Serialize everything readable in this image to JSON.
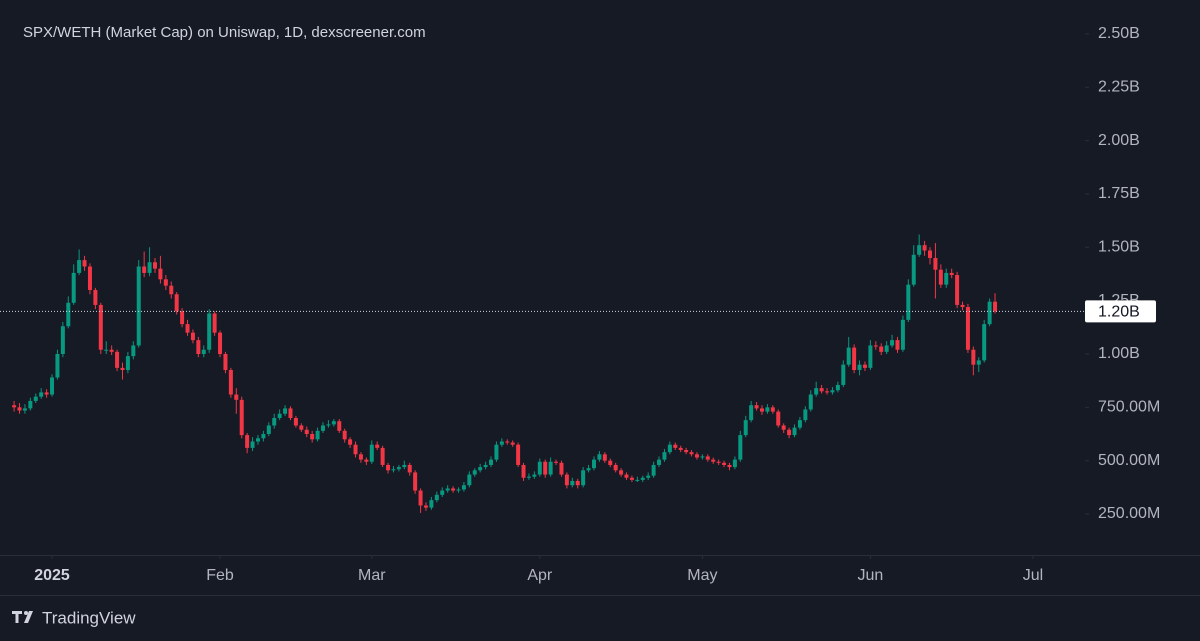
{
  "chart_data": {
    "type": "candlestick",
    "title": "SPX/WETH (Market Cap) on Uniswap, 1D, dexscreener.com",
    "brand": "TradingView",
    "up_color": "#089981",
    "down_color": "#f23645",
    "ylim": [
      58,
      2659
    ],
    "yticks": [
      {
        "value": 2500,
        "label": "2.50B"
      },
      {
        "value": 2250,
        "label": "2.25B"
      },
      {
        "value": 2000,
        "label": "2.00B"
      },
      {
        "value": 1750,
        "label": "1.75B"
      },
      {
        "value": 1500,
        "label": "1.50B"
      },
      {
        "value": 1250,
        "label": "1.25B"
      },
      {
        "value": 1000,
        "label": "1.00B"
      },
      {
        "value": 750,
        "label": "750.00M"
      },
      {
        "value": 500,
        "label": "500.00M"
      },
      {
        "value": 250,
        "label": "250.00M"
      }
    ],
    "xlim": [
      -2.6,
      197.6
    ],
    "xticks": [
      {
        "value": 7,
        "label": "2025"
      },
      {
        "value": 38,
        "label": "Feb"
      },
      {
        "value": 66,
        "label": "Mar"
      },
      {
        "value": 97,
        "label": "Apr"
      },
      {
        "value": 127,
        "label": "May"
      },
      {
        "value": 158,
        "label": "Jun"
      },
      {
        "value": 188,
        "label": "Jul"
      }
    ],
    "price_line": {
      "value": 1200,
      "label": "1.20B"
    },
    "open": [
      760,
      750,
      735,
      745,
      780,
      800,
      820,
      810,
      890,
      1000,
      1130,
      1240,
      1380,
      1440,
      1410,
      1300,
      1230,
      1020,
      1020,
      1010,
      935,
      925,
      990,
      1040,
      1410,
      1380,
      1430,
      1400,
      1350,
      1320,
      1280,
      1200,
      1140,
      1100,
      1065,
      1000,
      1020,
      1190,
      1100,
      1000,
      925,
      810,
      785,
      620,
      560,
      590,
      605,
      625,
      665,
      700,
      720,
      745,
      700,
      665,
      645,
      625,
      600,
      640,
      665,
      670,
      685,
      640,
      600,
      575,
      530,
      505,
      495,
      575,
      560,
      480,
      455,
      460,
      470,
      480,
      445,
      360,
      290,
      280,
      315,
      340,
      360,
      370,
      360,
      365,
      385,
      435,
      455,
      470,
      480,
      505,
      575,
      590,
      585,
      575,
      480,
      420,
      425,
      435,
      495,
      435,
      495,
      490,
      435,
      385,
      405,
      385,
      455,
      465,
      505,
      530,
      500,
      480,
      455,
      435,
      420,
      410,
      410,
      420,
      430,
      480,
      505,
      540,
      575,
      560,
      550,
      540,
      530,
      515,
      520,
      505,
      495,
      490,
      480,
      470,
      505,
      620,
      690,
      760,
      745,
      730,
      750,
      730,
      665,
      645,
      620,
      655,
      690,
      740,
      810,
      840,
      825,
      820,
      830,
      855,
      950,
      1030,
      925,
      950,
      935,
      1040,
      1035,
      1010,
      1040,
      1065,
      1020,
      1160,
      1325,
      1465,
      1510,
      1485,
      1450,
      1395,
      1325,
      1380,
      1370,
      1230,
      1220,
      1020,
      950,
      970,
      1140,
      1245
    ],
    "high": [
      780,
      770,
      765,
      795,
      815,
      840,
      835,
      905,
      1020,
      1150,
      1270,
      1420,
      1490,
      1460,
      1425,
      1310,
      1240,
      1060,
      1040,
      1020,
      960,
      1010,
      1060,
      1440,
      1480,
      1500,
      1450,
      1460,
      1370,
      1340,
      1290,
      1215,
      1160,
      1115,
      1080,
      1040,
      1210,
      1200,
      1110,
      1010,
      935,
      840,
      800,
      630,
      610,
      620,
      640,
      680,
      720,
      740,
      760,
      755,
      710,
      675,
      660,
      640,
      655,
      680,
      690,
      695,
      695,
      650,
      610,
      590,
      540,
      515,
      595,
      590,
      570,
      490,
      475,
      480,
      500,
      490,
      455,
      370,
      305,
      330,
      355,
      375,
      385,
      380,
      375,
      400,
      450,
      465,
      485,
      495,
      520,
      590,
      605,
      600,
      595,
      585,
      490,
      440,
      450,
      510,
      505,
      515,
      505,
      500,
      445,
      420,
      415,
      470,
      480,
      520,
      545,
      540,
      510,
      490,
      465,
      445,
      430,
      425,
      430,
      445,
      495,
      520,
      555,
      590,
      585,
      570,
      560,
      550,
      540,
      530,
      530,
      515,
      505,
      500,
      490,
      520,
      640,
      710,
      780,
      775,
      760,
      765,
      760,
      740,
      675,
      655,
      670,
      705,
      755,
      830,
      870,
      855,
      840,
      845,
      870,
      970,
      1080,
      1045,
      970,
      965,
      1065,
      1060,
      1050,
      1060,
      1090,
      1080,
      1180,
      1350,
      1510,
      1560,
      1530,
      1500,
      1520,
      1420,
      1400,
      1400,
      1385,
      1245,
      1235,
      1035,
      985,
      1160,
      1260,
      1285
    ],
    "low": [
      730,
      720,
      720,
      735,
      770,
      790,
      795,
      800,
      880,
      985,
      1120,
      1230,
      1370,
      1390,
      1280,
      1210,
      1000,
      1000,
      995,
      920,
      880,
      910,
      975,
      1030,
      1360,
      1365,
      1380,
      1330,
      1300,
      1260,
      1185,
      1125,
      1085,
      1050,
      985,
      985,
      1005,
      1085,
      985,
      910,
      795,
      720,
      605,
      535,
      545,
      575,
      590,
      615,
      650,
      690,
      710,
      690,
      655,
      635,
      610,
      585,
      590,
      630,
      655,
      660,
      630,
      585,
      560,
      515,
      490,
      480,
      485,
      550,
      470,
      440,
      445,
      450,
      460,
      430,
      345,
      255,
      265,
      270,
      305,
      330,
      350,
      350,
      350,
      355,
      375,
      425,
      445,
      460,
      470,
      495,
      565,
      575,
      565,
      470,
      405,
      410,
      415,
      425,
      420,
      425,
      480,
      425,
      370,
      375,
      370,
      375,
      445,
      455,
      495,
      490,
      470,
      445,
      425,
      410,
      400,
      400,
      400,
      410,
      420,
      470,
      495,
      530,
      550,
      540,
      530,
      520,
      505,
      505,
      495,
      485,
      480,
      470,
      455,
      460,
      495,
      610,
      680,
      735,
      715,
      720,
      720,
      655,
      630,
      605,
      610,
      645,
      680,
      730,
      800,
      815,
      810,
      810,
      820,
      845,
      940,
      910,
      900,
      920,
      925,
      1020,
      995,
      1000,
      1030,
      1005,
      1010,
      1150,
      1315,
      1455,
      1460,
      1420,
      1260,
      1310,
      1310,
      1355,
      1215,
      1205,
      1005,
      900,
      915,
      960,
      1130,
      1190
    ],
    "close": [
      750,
      735,
      745,
      780,
      800,
      820,
      810,
      890,
      1000,
      1130,
      1240,
      1380,
      1440,
      1410,
      1300,
      1230,
      1020,
      1020,
      1010,
      935,
      925,
      990,
      1040,
      1410,
      1380,
      1430,
      1400,
      1350,
      1320,
      1280,
      1200,
      1140,
      1100,
      1065,
      1000,
      1020,
      1190,
      1100,
      1000,
      925,
      810,
      785,
      620,
      560,
      590,
      605,
      625,
      665,
      700,
      720,
      745,
      700,
      665,
      645,
      625,
      600,
      640,
      665,
      670,
      685,
      640,
      600,
      575,
      530,
      505,
      495,
      575,
      560,
      480,
      455,
      460,
      470,
      480,
      445,
      360,
      290,
      280,
      315,
      340,
      360,
      370,
      360,
      365,
      385,
      435,
      455,
      470,
      480,
      505,
      575,
      590,
      585,
      575,
      480,
      420,
      425,
      435,
      495,
      435,
      495,
      490,
      435,
      385,
      405,
      385,
      455,
      465,
      505,
      530,
      500,
      480,
      455,
      435,
      420,
      410,
      410,
      420,
      430,
      480,
      505,
      540,
      575,
      560,
      550,
      540,
      530,
      515,
      520,
      505,
      495,
      490,
      480,
      470,
      505,
      620,
      690,
      760,
      745,
      730,
      750,
      730,
      665,
      645,
      620,
      655,
      690,
      740,
      810,
      840,
      825,
      820,
      830,
      855,
      950,
      1030,
      925,
      950,
      935,
      1040,
      1035,
      1010,
      1040,
      1065,
      1020,
      1160,
      1325,
      1465,
      1510,
      1485,
      1450,
      1395,
      1325,
      1380,
      1370,
      1230,
      1220,
      1020,
      950,
      970,
      1140,
      1245,
      1200
    ]
  }
}
